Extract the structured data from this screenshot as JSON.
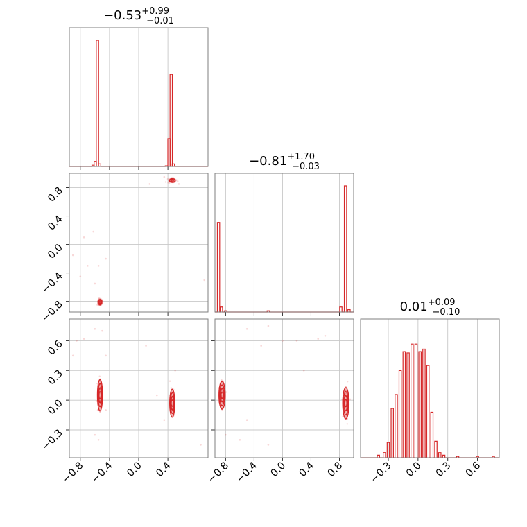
{
  "colors": {
    "series": "#d62728",
    "grid": "#c8c8c8",
    "frame": "#7f7f7f"
  },
  "titles": [
    {
      "value": "−0.53",
      "plus": "+0.99",
      "minus": "−0.01"
    },
    {
      "value": "−0.81",
      "plus": "+1.70",
      "minus": "−0.03"
    },
    {
      "value": "0.01",
      "plus": "+0.09",
      "minus": "−0.10"
    }
  ],
  "chart_data": {
    "type": "corner",
    "parameters": [
      {
        "range": [
          -0.95,
          0.95
        ],
        "ticks": [
          -0.8,
          -0.4,
          0.0,
          0.4
        ],
        "tick_labels": [
          "−0.8",
          "−0.4",
          "0.0",
          "0.4"
        ]
      },
      {
        "range": [
          -0.95,
          1.0
        ],
        "ticks": [
          -0.8,
          -0.4,
          0.0,
          0.4,
          0.8
        ],
        "tick_labels": [
          "−0.8",
          "−0.4",
          "0.0",
          "0.4",
          "0.8"
        ]
      },
      {
        "range": [
          -0.58,
          0.82
        ],
        "ticks": [
          -0.3,
          0.0,
          0.3,
          0.6
        ],
        "tick_labels": [
          "−0.3",
          "0.0",
          "0.3",
          "0.6"
        ]
      }
    ],
    "grid": true,
    "marginals": [
      {
        "param": 0,
        "bins": [
          {
            "x": -0.68,
            "count": 0.0
          },
          {
            "x": -0.625,
            "count": 0.01
          },
          {
            "x": -0.595,
            "count": 0.04
          },
          {
            "x": -0.565,
            "count": 1.0
          },
          {
            "x": -0.535,
            "count": 0.02
          },
          {
            "x": 0.38,
            "count": 0.005
          },
          {
            "x": 0.415,
            "count": 0.22
          },
          {
            "x": 0.445,
            "count": 0.73
          },
          {
            "x": 0.475,
            "count": 0.02
          }
        ]
      },
      {
        "param": 1,
        "bins": [
          {
            "x": -0.9,
            "count": 0.71
          },
          {
            "x": -0.86,
            "count": 0.04
          },
          {
            "x": -0.8,
            "count": 0.01
          },
          {
            "x": -0.2,
            "count": 0.01
          },
          {
            "x": 0.82,
            "count": 0.04
          },
          {
            "x": 0.885,
            "count": 1.0
          },
          {
            "x": 0.935,
            "count": 0.02
          }
        ]
      },
      {
        "param": 2,
        "bins": [
          {
            "x": -0.56,
            "count": 0.0
          },
          {
            "x": -0.4,
            "count": 0.02
          },
          {
            "x": -0.34,
            "count": 0.04
          },
          {
            "x": -0.3,
            "count": 0.12
          },
          {
            "x": -0.26,
            "count": 0.39
          },
          {
            "x": -0.22,
            "count": 0.5
          },
          {
            "x": -0.18,
            "count": 0.69
          },
          {
            "x": -0.14,
            "count": 0.84
          },
          {
            "x": -0.1,
            "count": 0.83
          },
          {
            "x": -0.06,
            "count": 0.9
          },
          {
            "x": -0.02,
            "count": 0.9
          },
          {
            "x": 0.02,
            "count": 0.84
          },
          {
            "x": 0.06,
            "count": 0.86
          },
          {
            "x": 0.1,
            "count": 0.73
          },
          {
            "x": 0.14,
            "count": 0.36
          },
          {
            "x": 0.18,
            "count": 0.13
          },
          {
            "x": 0.22,
            "count": 0.04
          },
          {
            "x": 0.26,
            "count": 0.02
          },
          {
            "x": 0.4,
            "count": 0.01
          },
          {
            "x": 0.6,
            "count": 0.01
          },
          {
            "x": 0.76,
            "count": 0.01
          }
        ]
      }
    ],
    "pairs": [
      {
        "x_param": 0,
        "y_param": 1,
        "clusters": [
          {
            "center": [
              -0.53,
              -0.81
            ],
            "spread": [
              0.02,
              0.03
            ],
            "levels": 2
          },
          {
            "center": [
              0.46,
              0.9
            ],
            "spread": [
              0.03,
              0.02
            ],
            "levels": 2
          }
        ],
        "scatter": [
          [
            -0.9,
            -0.15
          ],
          [
            -0.8,
            -0.45
          ],
          [
            -0.75,
            0.1
          ],
          [
            -0.7,
            -0.3
          ],
          [
            -0.62,
            0.18
          ],
          [
            -0.55,
            -0.3
          ],
          [
            -0.45,
            -0.2
          ],
          [
            -0.6,
            -0.55
          ],
          [
            0.15,
            0.85
          ],
          [
            0.55,
            0.85
          ],
          [
            0.9,
            -0.5
          ],
          [
            0.35,
            0.95
          ]
        ]
      },
      {
        "x_param": 0,
        "y_param": 2,
        "clusters": [
          {
            "center": [
              -0.53,
              0.05
            ],
            "spread": [
              0.02,
              0.09
            ],
            "levels": 4
          },
          {
            "center": [
              0.46,
              -0.03
            ],
            "spread": [
              0.02,
              0.08
            ],
            "levels": 4
          }
        ],
        "scatter": [
          [
            -0.9,
            0.45
          ],
          [
            -0.85,
            0.6
          ],
          [
            -0.75,
            0.62
          ],
          [
            -0.6,
            0.72
          ],
          [
            -0.5,
            0.7
          ],
          [
            -0.45,
            0.45
          ],
          [
            -0.45,
            -0.1
          ],
          [
            -0.6,
            -0.35
          ],
          [
            0.1,
            0.55
          ],
          [
            0.25,
            0.05
          ],
          [
            0.35,
            -0.2
          ],
          [
            0.85,
            -0.45
          ],
          [
            -0.55,
            -0.4
          ],
          [
            0.5,
            0.3
          ]
        ]
      },
      {
        "x_param": 1,
        "y_param": 2,
        "clusters": [
          {
            "center": [
              -0.85,
              0.05
            ],
            "spread": [
              0.025,
              0.08
            ],
            "levels": 4
          },
          {
            "center": [
              0.89,
              -0.03
            ],
            "spread": [
              0.025,
              0.09
            ],
            "levels": 4
          }
        ],
        "scatter": [
          [
            -0.5,
            0.72
          ],
          [
            -0.3,
            0.55
          ],
          [
            -0.2,
            0.75
          ],
          [
            0.0,
            0.6
          ],
          [
            0.2,
            0.6
          ],
          [
            0.5,
            0.62
          ],
          [
            0.6,
            0.65
          ],
          [
            0.3,
            0.3
          ],
          [
            -0.6,
            -0.4
          ],
          [
            -0.5,
            -0.2
          ],
          [
            -0.2,
            -0.45
          ],
          [
            -0.8,
            -0.35
          ]
        ]
      }
    ]
  }
}
